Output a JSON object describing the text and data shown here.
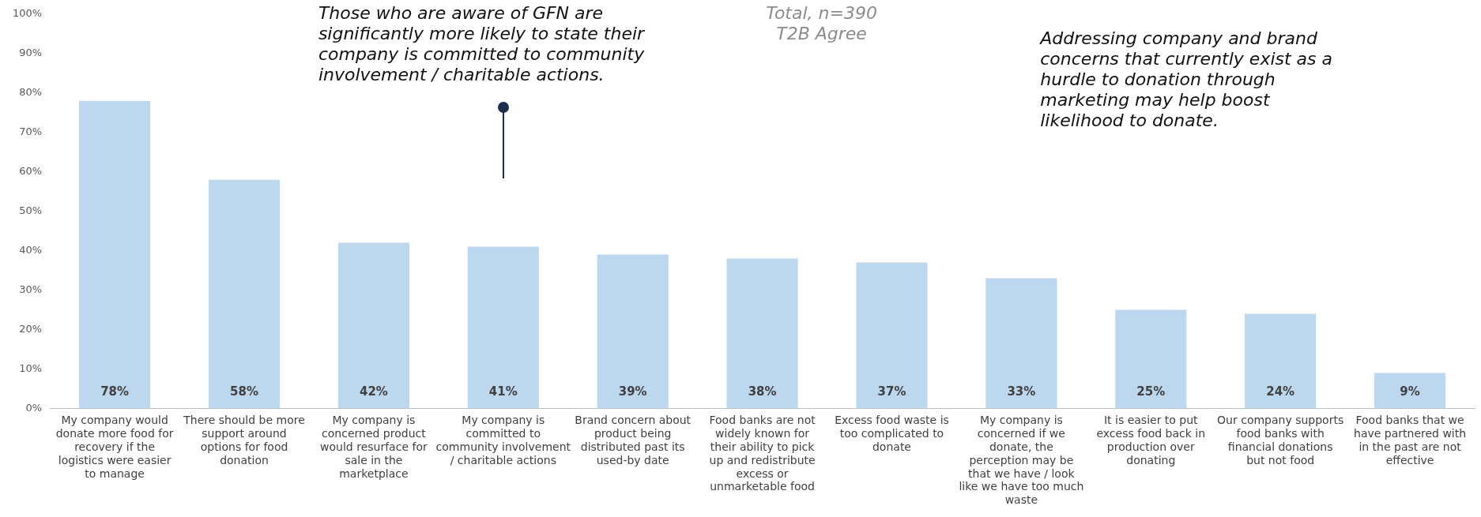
{
  "chart_data": {
    "type": "bar",
    "categories": [
      "My company would donate more food for recovery if the logistics were easier to manage",
      "There should be more support around options for food donation",
      "My company is concerned product would resurface for sale in the marketplace",
      "My company is committed to community involvement / charitable actions",
      "Brand concern about product being distributed past its used-by date",
      "Food banks are not widely known for their ability to pick up and redistribute excess or unmarketable food",
      "Excess food waste is too complicated to donate",
      "My company is concerned if we donate, the perception may be that we have / look like we have too much waste",
      "It is easier to put excess food back in production over donating",
      "Our company supports food banks with financial donations but not food",
      "Food banks that we have partnered with in the past are not effective"
    ],
    "values": [
      78,
      58,
      42,
      41,
      39,
      38,
      37,
      33,
      25,
      24,
      9
    ],
    "value_labels": [
      "78%",
      "58%",
      "42%",
      "41%",
      "39%",
      "38%",
      "37%",
      "33%",
      "25%",
      "24%",
      "9%"
    ],
    "color": "#bdd7ee",
    "ylim": [
      0,
      100
    ],
    "yticks": [
      {
        "value": 0,
        "label": "0%"
      },
      {
        "value": 10,
        "label": "10%"
      },
      {
        "value": 20,
        "label": "20%"
      },
      {
        "value": 30,
        "label": "30%"
      },
      {
        "value": 40,
        "label": "40%"
      },
      {
        "value": 50,
        "label": "50%"
      },
      {
        "value": 60,
        "label": "60%"
      },
      {
        "value": 70,
        "label": "70%"
      },
      {
        "value": 80,
        "label": "80%"
      },
      {
        "value": 90,
        "label": "90%"
      },
      {
        "value": 100,
        "label": "100%"
      }
    ],
    "grid": false,
    "legend": false,
    "annotations": [
      "Those who are aware of GFN are significantly more likely to state their company is committed to community involvement / charitable actions.",
      "Total, n=390 T2B Agree",
      "Addressing company and brand concerns that currently exist as a hurdle to donation through marketing may help boost likelihood to donate."
    ]
  }
}
